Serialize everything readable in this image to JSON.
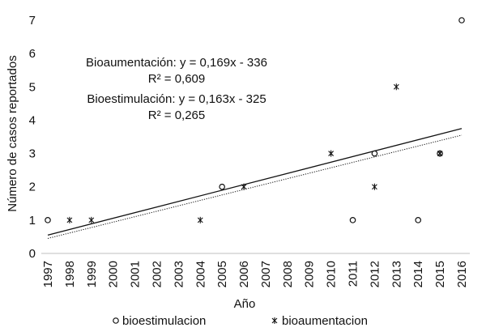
{
  "chart_data": {
    "type": "scatter",
    "title": "",
    "xlabel": "Año",
    "ylabel": "Número de casos reportados",
    "xlim": [
      1997,
      2016
    ],
    "ylim": [
      0,
      7
    ],
    "x_ticks": [
      "1997",
      "1998",
      "1999",
      "2000",
      "2001",
      "2002",
      "2003",
      "2004",
      "2005",
      "2006",
      "2007",
      "2008",
      "2009",
      "2010",
      "2011",
      "2012",
      "2013",
      "2014",
      "2015",
      "2016"
    ],
    "y_ticks": [
      "0",
      "1",
      "2",
      "3",
      "4",
      "5",
      "6",
      "7"
    ],
    "grid": false,
    "legend_position": "bottom",
    "series": [
      {
        "name": "bioestimulacion",
        "marker": "circle",
        "color": "#111111",
        "x": [
          1997,
          2005,
          2011,
          2012,
          2014,
          2015,
          2016
        ],
        "y": [
          1,
          2,
          1,
          3,
          1,
          3,
          7
        ]
      },
      {
        "name": "bioaumentacion",
        "marker": "star",
        "color": "#111111",
        "x": [
          1998,
          1999,
          2004,
          2006,
          2010,
          2012,
          2013,
          2015
        ],
        "y": [
          1,
          1,
          1,
          2,
          3,
          2,
          5,
          3
        ]
      }
    ],
    "trendlines": [
      {
        "series": "bioaumentacion",
        "style": "solid",
        "x": [
          1997,
          2016
        ],
        "y": [
          0.55,
          3.75
        ]
      },
      {
        "series": "bioestimulacion",
        "style": "dotted",
        "x": [
          1997,
          2016
        ],
        "y": [
          0.45,
          3.55
        ]
      }
    ],
    "annotations": [
      {
        "id": "bioaum-eq",
        "text": "Bioaumentación: y = 0,169x - 336"
      },
      {
        "id": "bioaum-r2",
        "text": "R² = 0,609"
      },
      {
        "id": "bioest-eq",
        "text": "Bioestimulación: y = 0,163x - 325"
      },
      {
        "id": "bioest-r2",
        "text": "R² = 0,265"
      }
    ]
  }
}
